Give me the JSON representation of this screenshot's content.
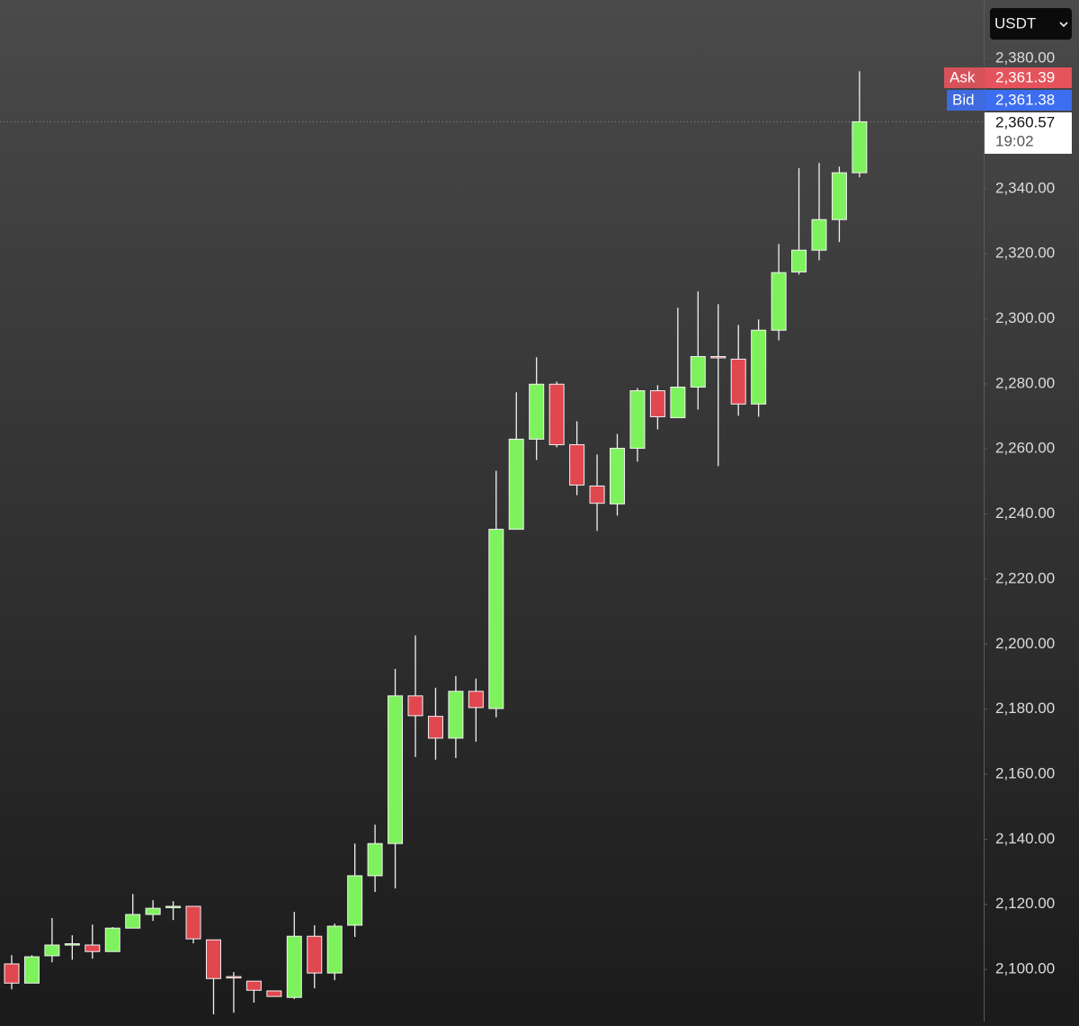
{
  "chart_data": {
    "type": "candlestick",
    "currency": "USDT",
    "open": [
      2101.7,
      2095.8,
      2104.2,
      2107.7,
      2107.5,
      2105.5,
      2112.7,
      2116.9,
      2119.2,
      2119.4,
      2109.1,
      2097.8,
      2096.4,
      2093.4,
      2091.4,
      2110.2,
      2098.9,
      2113.6,
      2128.8,
      2138.7,
      2184.1,
      2177.8,
      2171.1,
      2185.5,
      2180.2,
      2235.3,
      2263,
      2279.9,
      2261.3,
      2248.6,
      2243.1,
      2260.2,
      2277.9,
      2269.6,
      2279,
      2288.4,
      2287.6,
      2273.8,
      2296.5,
      2314.4,
      2321.1,
      2330.5,
      2344.9
    ],
    "high": [
      2104.4,
      2104.4,
      2115.8,
      2110.5,
      2113.8,
      2113,
      2123.2,
      2121.3,
      2121,
      2119.4,
      2109.1,
      2099.2,
      2096.4,
      2093.4,
      2117.7,
      2113.6,
      2114.1,
      2138.7,
      2144.5,
      2192.4,
      2202.7,
      2186.6,
      2190.2,
      2189.4,
      2253.3,
      2277.4,
      2288.2,
      2280.7,
      2268.5,
      2258.3,
      2264.6,
      2278.7,
      2279.6,
      2303.4,
      2308.4,
      2304.5,
      2298.1,
      2299.8,
      2323,
      2346.3,
      2347.9,
      2346.8,
      2376.1
    ],
    "low": [
      2093.9,
      2095.8,
      2102.2,
      2103,
      2103.3,
      2105.5,
      2112.7,
      2114.9,
      2115.2,
      2108,
      2086.2,
      2086.7,
      2089.8,
      2091.7,
      2090.9,
      2094.2,
      2096.7,
      2110,
      2123.8,
      2124.9,
      2165.3,
      2164.5,
      2165,
      2170,
      2177.5,
      2235.3,
      2256.6,
      2260.5,
      2245.8,
      2234.8,
      2239.5,
      2256.1,
      2266,
      2269.6,
      2272.1,
      2254.7,
      2270.2,
      2269.9,
      2293.4,
      2313.6,
      2318,
      2323.6,
      2343.5
    ],
    "close": [
      2095.8,
      2103.9,
      2107.5,
      2107.9,
      2105.5,
      2112.7,
      2116.9,
      2118.8,
      2119.4,
      2109.4,
      2097.2,
      2097.5,
      2093.6,
      2091.7,
      2110.2,
      2098.9,
      2113.3,
      2128.8,
      2138.7,
      2184.1,
      2178,
      2171.1,
      2185.5,
      2180.5,
      2235.3,
      2263,
      2279.9,
      2261.3,
      2248.9,
      2243.3,
      2260.2,
      2277.9,
      2269.9,
      2279,
      2288.4,
      2288.2,
      2273.8,
      2296.5,
      2314.2,
      2321.1,
      2330.5,
      2344.9,
      2360.57
    ],
    "up_color": "#7ef25c",
    "down_color": "#e0474f",
    "ylim": [
      2084,
      2398
    ],
    "yticks": [
      {
        "value": 2100,
        "label": "2,100.00"
      },
      {
        "value": 2120,
        "label": "2,120.00"
      },
      {
        "value": 2140,
        "label": "2,140.00"
      },
      {
        "value": 2160,
        "label": "2,160.00"
      },
      {
        "value": 2180,
        "label": "2,180.00"
      },
      {
        "value": 2200,
        "label": "2,200.00"
      },
      {
        "value": 2220,
        "label": "2,220.00"
      },
      {
        "value": 2240,
        "label": "2,240.00"
      },
      {
        "value": 2260,
        "label": "2,260.00"
      },
      {
        "value": 2280,
        "label": "2,280.00"
      },
      {
        "value": 2300,
        "label": "2,300.00"
      },
      {
        "value": 2320,
        "label": "2,320.00"
      },
      {
        "value": 2340,
        "label": "2,340.00"
      },
      {
        "value": 2380,
        "label": "2,380.00"
      }
    ],
    "price_markers": [
      {
        "name": "Ask",
        "value": 2361.39,
        "value_label": "2,361.39",
        "color": "#e5535c"
      },
      {
        "name": "Bid",
        "value": 2361.38,
        "value_label": "2,361.38",
        "color": "#3d6df0"
      }
    ],
    "last_price": {
      "value": 2360.57,
      "value_label": "2,360.57",
      "countdown": "19:02"
    }
  }
}
